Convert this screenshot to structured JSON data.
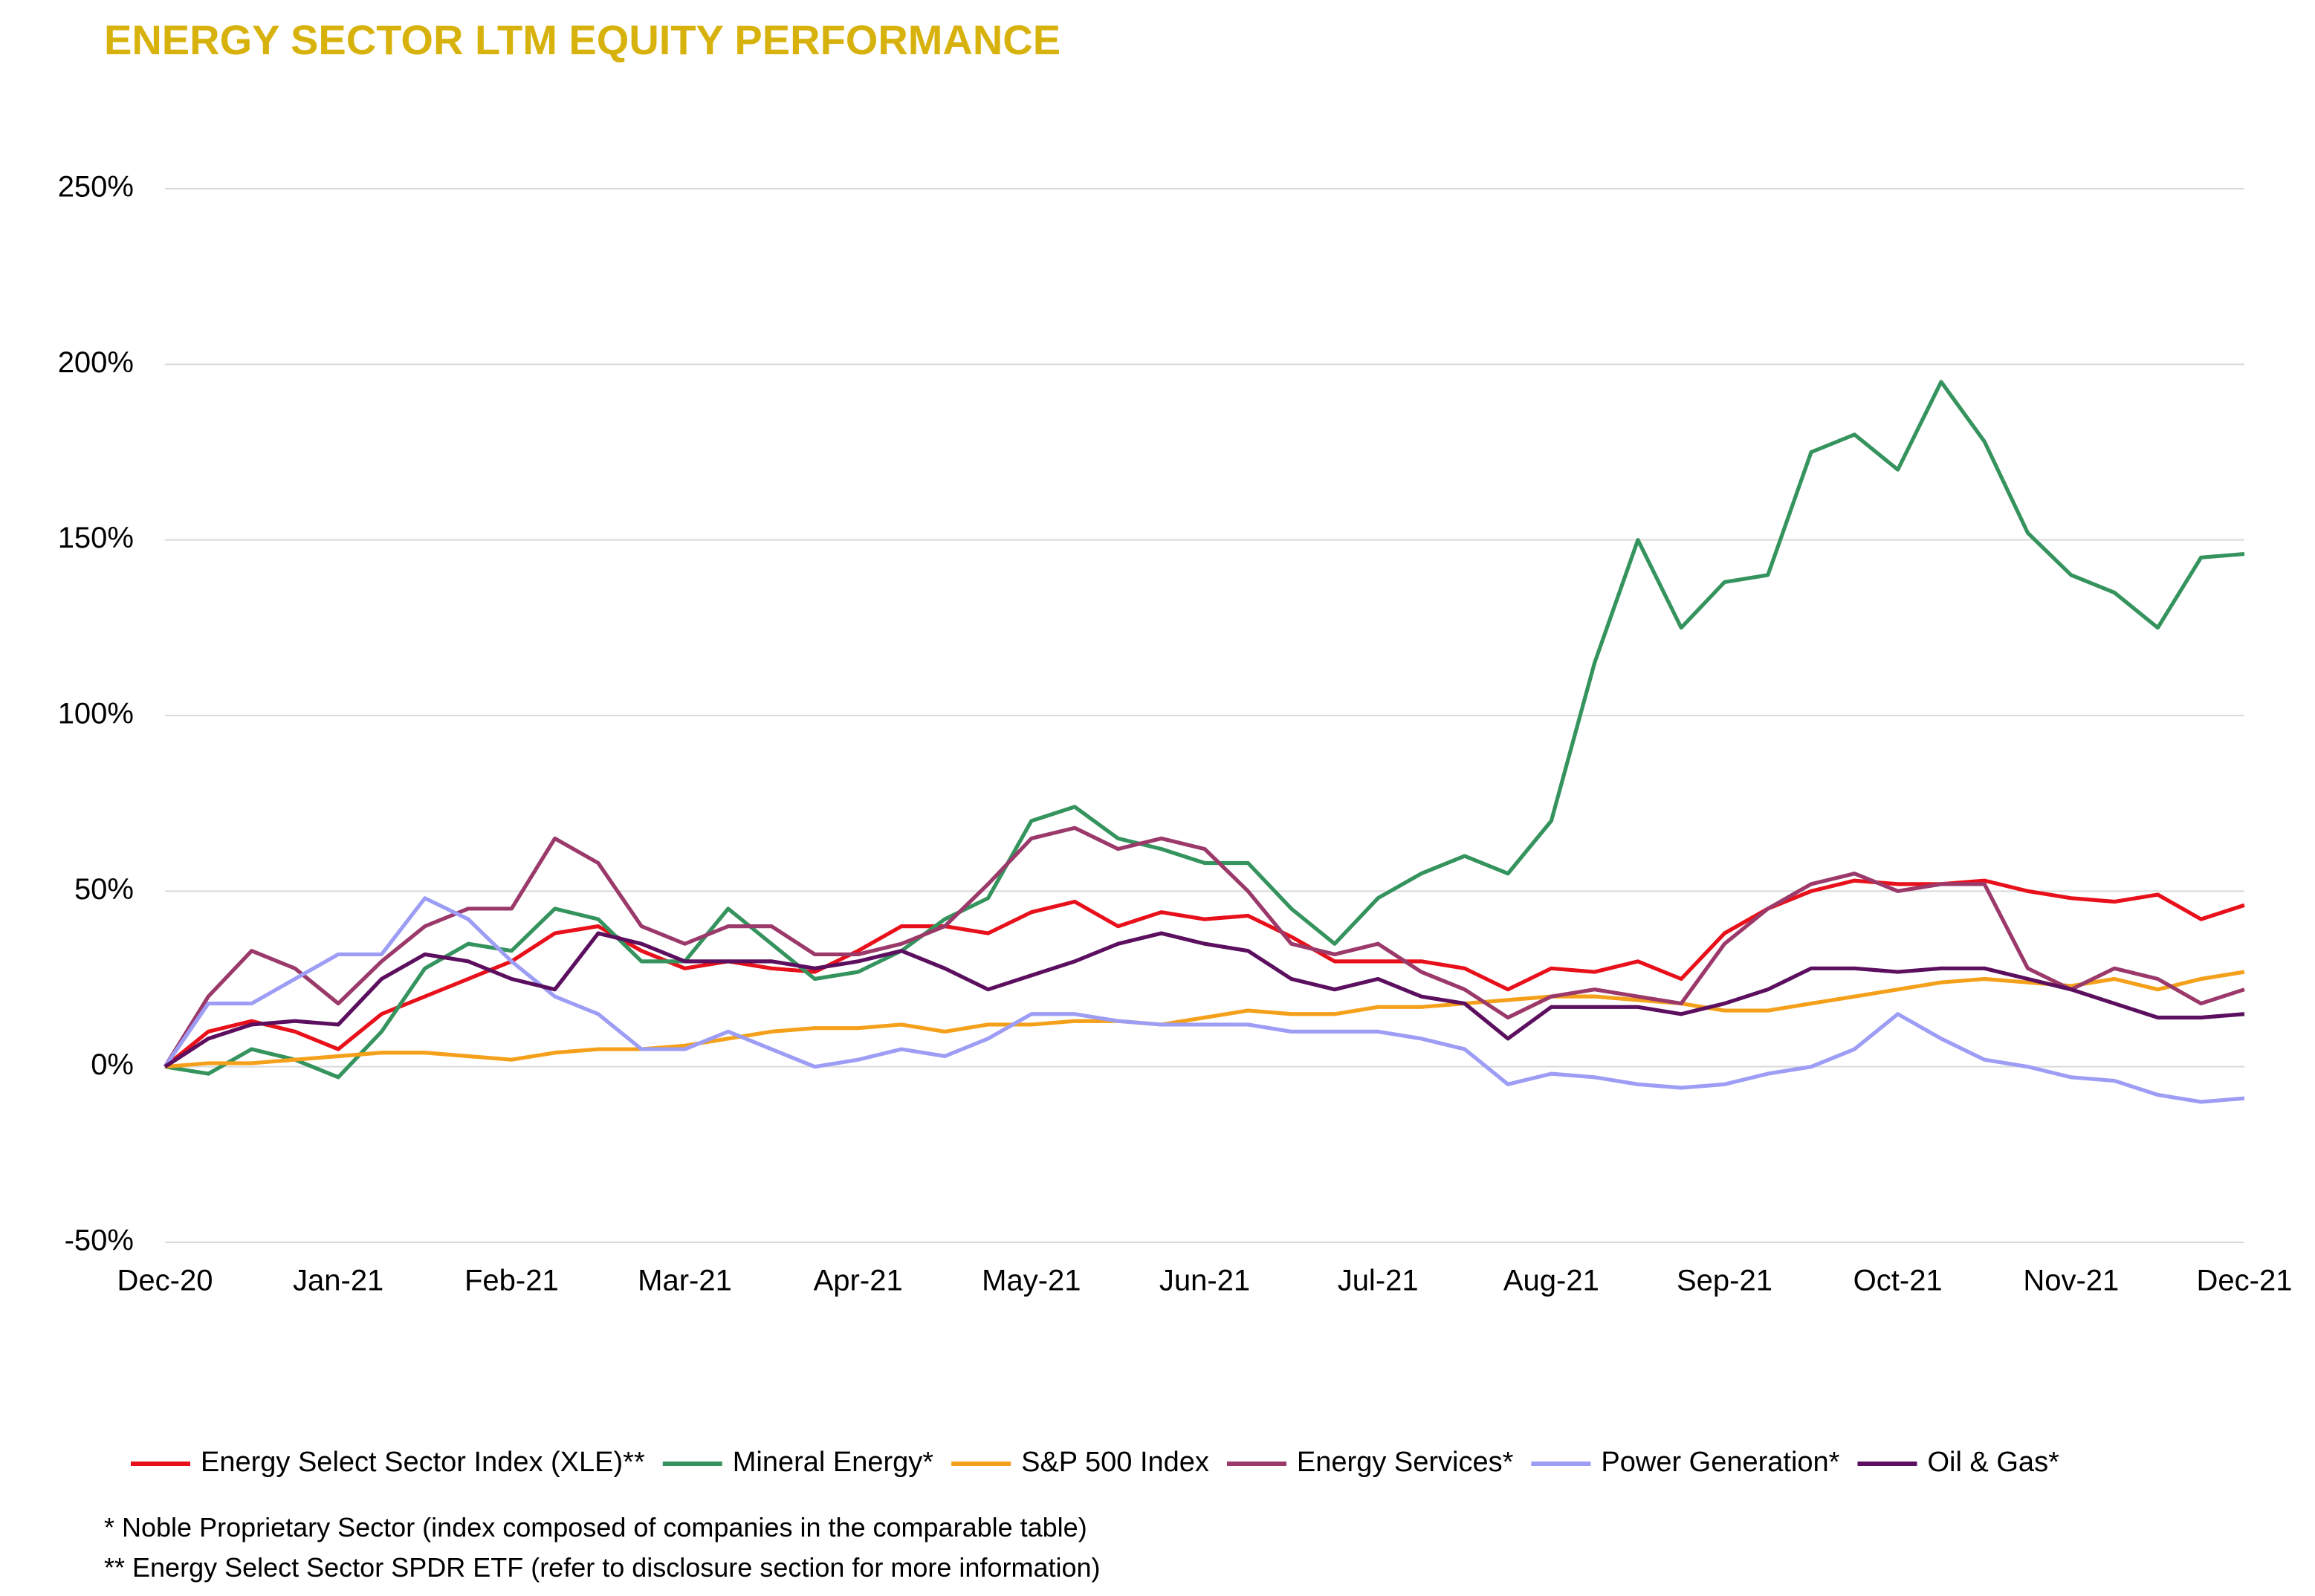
{
  "chart_data": {
    "type": "line",
    "title": "ENERGY SECTOR LTM EQUITY PERFORMANCE",
    "footnotes": [
      "* Noble Proprietary Sector (index composed of companies in the comparable table)",
      "** Energy Select Sector SPDR ETF (refer to disclosure section for more information)"
    ],
    "categories": [
      "Dec-20",
      null,
      null,
      null,
      "Jan-21",
      null,
      null,
      null,
      "Feb-21",
      null,
      null,
      null,
      "Mar-21",
      null,
      null,
      null,
      "Apr-21",
      null,
      null,
      null,
      "May-21",
      null,
      null,
      null,
      "Jun-21",
      null,
      null,
      null,
      "Jul-21",
      null,
      null,
      null,
      "Aug-21",
      null,
      null,
      null,
      "Sep-21",
      null,
      null,
      null,
      "Oct-21",
      null,
      null,
      null,
      "Nov-21",
      null,
      null,
      null,
      "Dec-21"
    ],
    "ylim": [
      -50,
      250
    ],
    "yticks": [
      {
        "value": -50,
        "label": "-50%"
      },
      {
        "value": 0,
        "label": "0%"
      },
      {
        "value": 50,
        "label": "50%"
      },
      {
        "value": 100,
        "label": "100%"
      },
      {
        "value": 150,
        "label": "150%"
      },
      {
        "value": 200,
        "label": "200%"
      },
      {
        "value": 250,
        "label": "250%"
      }
    ],
    "grid": true,
    "legend": "bottom",
    "series": [
      {
        "name": "Energy Select Sector Index (XLE)**",
        "color": "#e8101a",
        "values": [
          0,
          10,
          13,
          10,
          5,
          15,
          20,
          25,
          30,
          38,
          40,
          33,
          28,
          30,
          28,
          27,
          33,
          40,
          40,
          38,
          44,
          47,
          40,
          44,
          42,
          43,
          37,
          30,
          30,
          30,
          28,
          22,
          28,
          27,
          30,
          25,
          38,
          45,
          50,
          53,
          52,
          52,
          53,
          50,
          48,
          47,
          49,
          42,
          46
        ]
      },
      {
        "name": "Mineral Energy*",
        "color": "#35935e",
        "values": [
          0,
          -2,
          5,
          2,
          -3,
          10,
          28,
          35,
          33,
          45,
          42,
          30,
          30,
          45,
          35,
          25,
          27,
          33,
          42,
          48,
          70,
          74,
          65,
          62,
          58,
          58,
          45,
          35,
          48,
          55,
          60,
          55,
          70,
          115,
          150,
          125,
          138,
          140,
          175,
          180,
          170,
          195,
          178,
          152,
          140,
          135,
          125,
          145,
          146
        ]
      },
      {
        "name": "S&P 500 Index",
        "color": "#f5a01a",
        "values": [
          0,
          1,
          1,
          2,
          3,
          4,
          4,
          3,
          2,
          4,
          5,
          5,
          6,
          8,
          10,
          11,
          11,
          12,
          10,
          12,
          12,
          13,
          13,
          12,
          14,
          16,
          15,
          15,
          17,
          17,
          18,
          19,
          20,
          20,
          19,
          18,
          16,
          16,
          18,
          20,
          22,
          24,
          25,
          24,
          23,
          25,
          22,
          25,
          27
        ]
      },
      {
        "name": "Energy Services*",
        "color": "#9b3a6a",
        "values": [
          0,
          20,
          33,
          28,
          18,
          30,
          40,
          45,
          45,
          65,
          58,
          40,
          35,
          40,
          40,
          32,
          32,
          35,
          40,
          52,
          65,
          68,
          62,
          65,
          62,
          50,
          35,
          32,
          35,
          27,
          22,
          14,
          20,
          22,
          20,
          18,
          35,
          45,
          52,
          55,
          50,
          52,
          52,
          28,
          22,
          28,
          25,
          18,
          22
        ]
      },
      {
        "name": "Power Generation*",
        "color": "#9d9df5",
        "values": [
          0,
          18,
          18,
          25,
          32,
          32,
          48,
          42,
          30,
          20,
          15,
          5,
          5,
          10,
          5,
          0,
          2,
          5,
          3,
          8,
          15,
          15,
          13,
          12,
          12,
          12,
          10,
          10,
          10,
          8,
          5,
          -5,
          -2,
          -3,
          -5,
          -6,
          -5,
          -2,
          0,
          5,
          15,
          8,
          2,
          0,
          -3,
          -4,
          -8,
          -10,
          -9
        ]
      },
      {
        "name": "Oil & Gas*",
        "color": "#5b0f5e",
        "values": [
          0,
          8,
          12,
          13,
          12,
          25,
          32,
          30,
          25,
          22,
          38,
          35,
          30,
          30,
          30,
          28,
          30,
          33,
          28,
          22,
          26,
          30,
          35,
          38,
          35,
          33,
          25,
          22,
          25,
          20,
          18,
          8,
          17,
          17,
          17,
          15,
          18,
          22,
          28,
          28,
          27,
          28,
          28,
          25,
          22,
          18,
          14,
          14,
          15
        ]
      }
    ]
  }
}
